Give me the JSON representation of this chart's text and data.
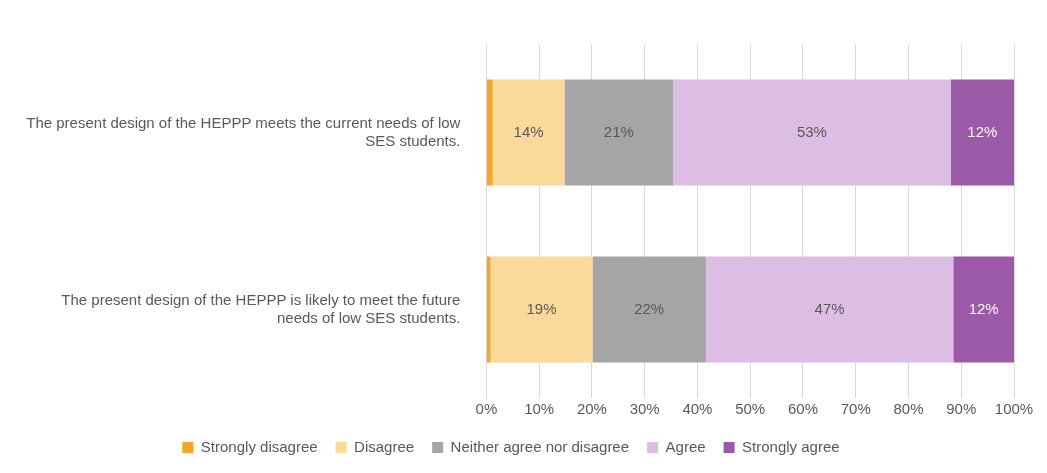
{
  "chart_data": {
    "type": "bar",
    "orientation": "horizontal",
    "stacked": true,
    "categories": [
      "The present design of the HEPPP meets the current needs of low SES students.",
      "The present design of the HEPPP is likely to meet the future needs of low SES students."
    ],
    "series": [
      {
        "name": "Strongly disagree",
        "color": "#f5a623",
        "values": [
          1.2,
          0.8
        ]
      },
      {
        "name": "Disagree",
        "color": "#fbd99a",
        "values": [
          13.6,
          19.3
        ],
        "value_labels": [
          "14%",
          "19%"
        ]
      },
      {
        "name": "Neither agree nor disagree",
        "color": "#a5a5a5",
        "values": [
          20.6,
          21.5
        ],
        "value_labels": [
          "21%",
          "22%"
        ]
      },
      {
        "name": "Agree",
        "color": "#dcbde3",
        "values": [
          52.6,
          46.9
        ],
        "value_labels": [
          "53%",
          "47%"
        ]
      },
      {
        "name": "Strongly agree",
        "color": "#9b59a8",
        "values": [
          12.0,
          11.5
        ],
        "value_labels": [
          "12%",
          "12%"
        ]
      }
    ],
    "xlim": [
      0,
      100
    ],
    "xticks": [
      {
        "value": 0,
        "label": "0%"
      },
      {
        "value": 10,
        "label": "10%"
      },
      {
        "value": 20,
        "label": "20%"
      },
      {
        "value": 30,
        "label": "30%"
      },
      {
        "value": 40,
        "label": "40%"
      },
      {
        "value": 50,
        "label": "50%"
      },
      {
        "value": 60,
        "label": "60%"
      },
      {
        "value": 70,
        "label": "70%"
      },
      {
        "value": 80,
        "label": "80%"
      },
      {
        "value": 90,
        "label": "90%"
      },
      {
        "value": 100,
        "label": "100%"
      }
    ],
    "grid": "x",
    "legend": "bottom"
  }
}
